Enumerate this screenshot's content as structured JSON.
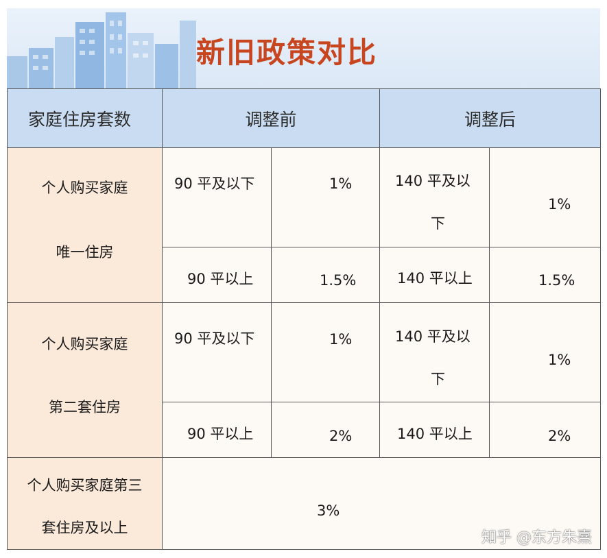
{
  "banner": {
    "title": "新旧政策对比"
  },
  "table": {
    "headers": [
      "家庭住房套数",
      "调整前",
      "调整后"
    ],
    "row1": {
      "label_line1": "个人购买家庭",
      "label_line2": "唯一住房",
      "before_small_area": "90 平及以下",
      "before_small_rate": "1%",
      "before_large_area": "90 平以上",
      "before_large_rate": "1.5%",
      "after_small_area_line1": "140 平及以",
      "after_small_area_line2": "下",
      "after_small_rate": "1%",
      "after_large_area": "140 平以上",
      "after_large_rate": "1.5%"
    },
    "row2": {
      "label_line1": "个人购买家庭",
      "label_line2": "第二套住房",
      "before_small_area": "90 平及以下",
      "before_small_rate": "1%",
      "before_large_area": "90 平以上",
      "before_large_rate": "2%",
      "after_small_area_line1": "140 平及以",
      "after_small_area_line2": "下",
      "after_small_rate": "1%",
      "after_large_area": "140 平以上",
      "after_large_rate": "2%"
    },
    "row3": {
      "label_line1": "个人购买家庭第三",
      "label_line2": "套住房及以上",
      "rate": "3%"
    }
  },
  "watermark": "知乎 @东方朱熹"
}
